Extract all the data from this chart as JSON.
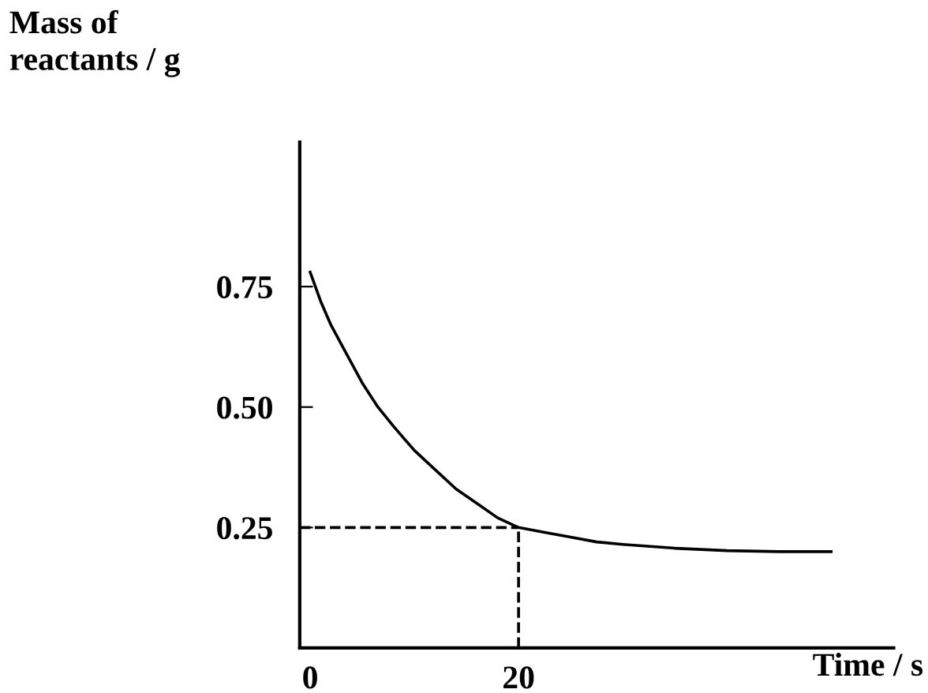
{
  "chart_data": {
    "type": "line",
    "xlabel": "Time / s",
    "ylabel": "Mass of\nreactants / g",
    "x": [
      0,
      1,
      2,
      3.5,
      5,
      6.5,
      8,
      10,
      12,
      14,
      16,
      18,
      20,
      22.5,
      25,
      27.5,
      30,
      35,
      40,
      45,
      50
    ],
    "series": [
      {
        "color": "#000000",
        "values": [
          0.78,
          0.72,
          0.67,
          0.61,
          0.55,
          0.5,
          0.46,
          0.41,
          0.37,
          0.33,
          0.3,
          0.27,
          0.25,
          0.24,
          0.23,
          0.22,
          0.215,
          0.207,
          0.202,
          0.2,
          0.2
        ]
      }
    ],
    "xlim": [
      -1,
      56
    ],
    "ylim": [
      0,
      1.05
    ],
    "xticks": [
      0,
      20
    ],
    "yticks": [
      {
        "value": 0.25,
        "label": "0.25"
      },
      {
        "value": 0.5,
        "label": "0.50"
      },
      {
        "value": 0.75,
        "label": "0.75"
      }
    ],
    "ref_lines": [
      {
        "axis": "y",
        "value": 0.25,
        "line_style": "dashed"
      },
      {
        "axis": "x",
        "value": 20,
        "line_style": "dashed"
      }
    ],
    "grid": false,
    "legend": false,
    "marker": "none",
    "line_style": "solid"
  }
}
